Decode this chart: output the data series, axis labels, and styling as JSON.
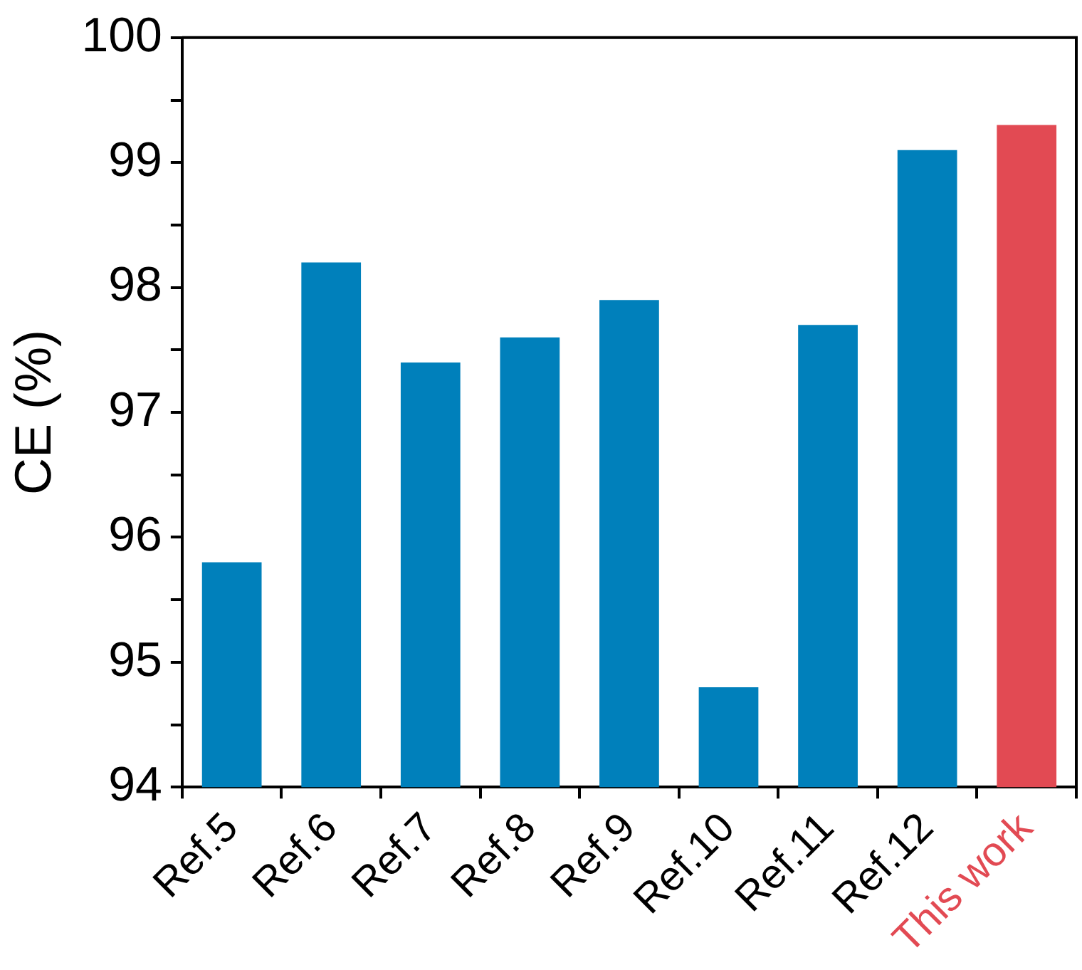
{
  "chart_data": {
    "type": "bar",
    "ylabel": "CE (%)",
    "categories": [
      "Ref.5",
      "Ref.6",
      "Ref.7",
      "Ref.8",
      "Ref.9",
      "Ref.10",
      "Ref.11",
      "Ref.12",
      "This work"
    ],
    "values": [
      95.8,
      98.2,
      97.4,
      97.6,
      97.9,
      94.8,
      97.7,
      99.1,
      99.3
    ],
    "colors": [
      "#0080bb",
      "#0080bb",
      "#0080bb",
      "#0080bb",
      "#0080bb",
      "#0080bb",
      "#0080bb",
      "#0080bb",
      "#e24a53"
    ],
    "ylim": [
      94,
      100
    ],
    "yticks": [
      94,
      {
        "value": 94.5,
        "label": null
      },
      95,
      {
        "value": 95.5,
        "label": null
      },
      96,
      {
        "value": 96.5,
        "label": null
      },
      97,
      {
        "value": 97.5,
        "label": null
      },
      98,
      {
        "value": 98.5,
        "label": null
      },
      99,
      {
        "value": 99.5,
        "label": null
      },
      100
    ],
    "grid": false,
    "legend": false
  }
}
